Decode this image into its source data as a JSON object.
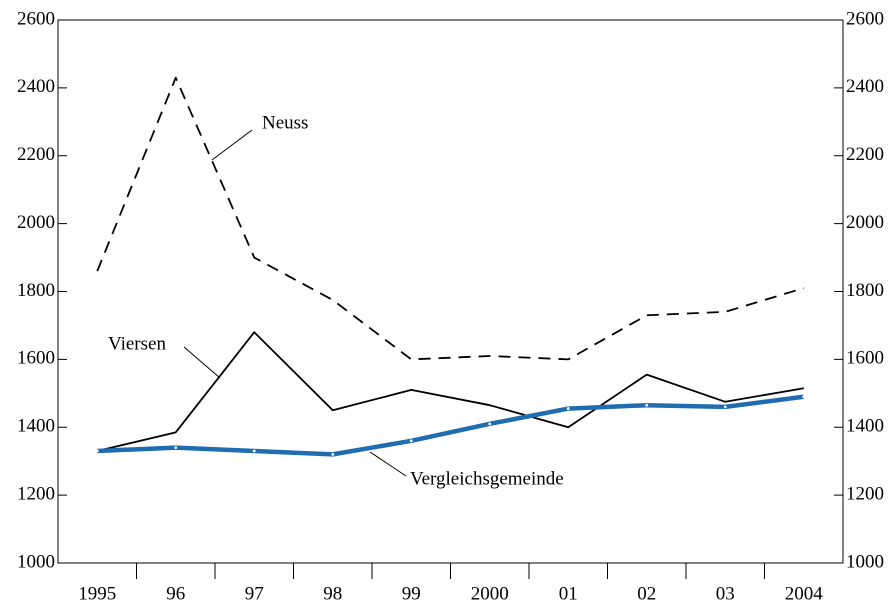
{
  "chart_data": {
    "type": "line",
    "categories": [
      "1995",
      "96",
      "97",
      "98",
      "99",
      "2000",
      "01",
      "02",
      "03",
      "2004"
    ],
    "series": [
      {
        "name": "Neuss",
        "color": "#000000",
        "dash": true,
        "values": [
          1860,
          2430,
          1900,
          1775,
          1600,
          1610,
          1600,
          1730,
          1740,
          1810
        ]
      },
      {
        "name": "Viersen",
        "color": "#000000",
        "values": [
          1330,
          1385,
          1680,
          1450,
          1510,
          1465,
          1400,
          1555,
          1475,
          1515
        ]
      },
      {
        "name": "Vergleichsgemeinde",
        "color": "#1f6db0",
        "values": [
          1330,
          1340,
          1330,
          1320,
          1360,
          1410,
          1455,
          1465,
          1460,
          1490
        ]
      }
    ],
    "ylim": [
      1000,
      2600
    ],
    "yticks": [
      1000,
      1200,
      1400,
      1600,
      1800,
      2000,
      2200,
      2400,
      2600
    ]
  }
}
